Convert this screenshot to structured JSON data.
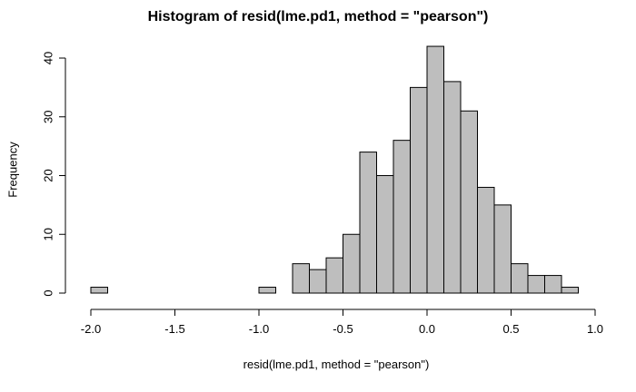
{
  "chart_data": {
    "type": "bar",
    "title": "Histogram of resid(lme.pd1, method = \"pearson\")",
    "xlabel": "resid(lme.pd1, method = \"pearson\")",
    "ylabel": "Frequency",
    "bar_fill": "#bebebe",
    "bar_stroke": "#000000",
    "bin_width": 0.1,
    "bins": [
      {
        "start": -2.0,
        "end": -1.9,
        "count": 1
      },
      {
        "start": -1.9,
        "end": -1.8,
        "count": 0
      },
      {
        "start": -1.8,
        "end": -1.7,
        "count": 0
      },
      {
        "start": -1.7,
        "end": -1.6,
        "count": 0
      },
      {
        "start": -1.6,
        "end": -1.5,
        "count": 0
      },
      {
        "start": -1.5,
        "end": -1.4,
        "count": 0
      },
      {
        "start": -1.4,
        "end": -1.3,
        "count": 0
      },
      {
        "start": -1.3,
        "end": -1.2,
        "count": 0
      },
      {
        "start": -1.2,
        "end": -1.1,
        "count": 0
      },
      {
        "start": -1.1,
        "end": -1.0,
        "count": 0
      },
      {
        "start": -1.0,
        "end": -0.9,
        "count": 1
      },
      {
        "start": -0.9,
        "end": -0.8,
        "count": 0
      },
      {
        "start": -0.8,
        "end": -0.7,
        "count": 5
      },
      {
        "start": -0.7,
        "end": -0.6,
        "count": 4
      },
      {
        "start": -0.6,
        "end": -0.5,
        "count": 6
      },
      {
        "start": -0.5,
        "end": -0.4,
        "count": 10
      },
      {
        "start": -0.4,
        "end": -0.3,
        "count": 24
      },
      {
        "start": -0.3,
        "end": -0.2,
        "count": 20
      },
      {
        "start": -0.2,
        "end": -0.1,
        "count": 26
      },
      {
        "start": -0.1,
        "end": 0.0,
        "count": 35
      },
      {
        "start": 0.0,
        "end": 0.1,
        "count": 42
      },
      {
        "start": 0.1,
        "end": 0.2,
        "count": 36
      },
      {
        "start": 0.2,
        "end": 0.3,
        "count": 31
      },
      {
        "start": 0.3,
        "end": 0.4,
        "count": 18
      },
      {
        "start": 0.4,
        "end": 0.5,
        "count": 15
      },
      {
        "start": 0.5,
        "end": 0.6,
        "count": 5
      },
      {
        "start": 0.6,
        "end": 0.7,
        "count": 3
      },
      {
        "start": 0.7,
        "end": 0.8,
        "count": 3
      },
      {
        "start": 0.8,
        "end": 0.9,
        "count": 1
      }
    ],
    "xlim": [
      -2.0,
      1.0
    ],
    "ylim": [
      0,
      42
    ],
    "xticks": [
      {
        "value": -2.0,
        "label": "-2.0"
      },
      {
        "value": -1.5,
        "label": "-1.5"
      },
      {
        "value": -1.0,
        "label": "-1.0"
      },
      {
        "value": -0.5,
        "label": "-0.5"
      },
      {
        "value": 0.0,
        "label": "0.0"
      },
      {
        "value": 0.5,
        "label": "0.5"
      },
      {
        "value": 1.0,
        "label": "1.0"
      }
    ],
    "yticks": [
      {
        "value": 0,
        "label": "0"
      },
      {
        "value": 10,
        "label": "10"
      },
      {
        "value": 20,
        "label": "20"
      },
      {
        "value": 30,
        "label": "30"
      },
      {
        "value": 40,
        "label": "40"
      }
    ],
    "grid": false
  }
}
